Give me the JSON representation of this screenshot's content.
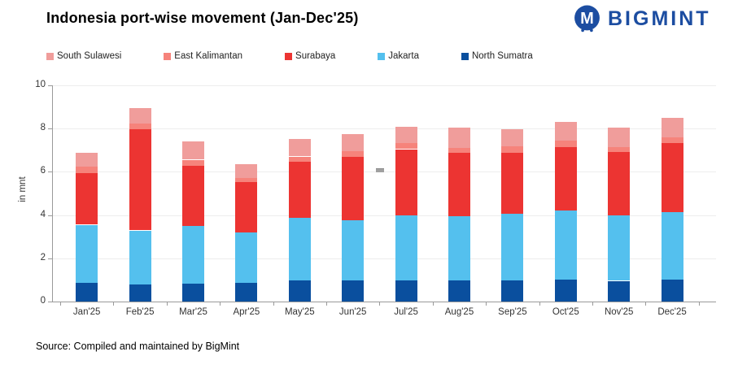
{
  "header": {
    "title": "Indonesia port-wise movement (Jan-Dec'25)",
    "logo_text": "BIGMINT",
    "logo_color": "#1C4DA1"
  },
  "legend": {
    "items": [
      {
        "label": "South Sulawesi",
        "color": "#F09D9B"
      },
      {
        "label": "East Kalimantan",
        "color": "#F6837B"
      },
      {
        "label": "Surabaya",
        "color": "#EC3432"
      },
      {
        "label": "Jakarta",
        "color": "#54C0EE"
      },
      {
        "label": "North Sumatra",
        "color": "#0A4F9E"
      }
    ]
  },
  "chart_data": {
    "type": "bar",
    "stacked": true,
    "title": "Indonesia port-wise movement (Jan-Dec'25)",
    "categories": [
      "Jan'25",
      "Feb'25",
      "Mar'25",
      "Apr'25",
      "May'25",
      "Jun'25",
      "Jul'25",
      "Aug'25",
      "Sep'25",
      "Oct'25",
      "Nov'25",
      "Dec'25"
    ],
    "series": [
      {
        "name": "North Sumatra",
        "color": "#0A4F9E",
        "values": [
          0.85,
          0.81,
          0.84,
          0.88,
          0.99,
          0.99,
          0.97,
          0.98,
          0.99,
          1.03,
          0.96,
          1.0
        ]
      },
      {
        "name": "Jakarta",
        "color": "#54C0EE",
        "values": [
          2.7,
          2.48,
          2.64,
          2.3,
          2.89,
          2.77,
          3.01,
          2.96,
          3.09,
          3.17,
          3.01,
          3.13
        ]
      },
      {
        "name": "Surabaya",
        "color": "#EC3432",
        "values": [
          2.4,
          4.69,
          2.79,
          2.33,
          2.57,
          2.94,
          3.07,
          2.95,
          2.82,
          2.95,
          2.96,
          3.2
        ]
      },
      {
        "name": "East Kalimantan",
        "color": "#F6837B",
        "values": [
          0.28,
          0.25,
          0.29,
          0.22,
          0.26,
          0.26,
          0.28,
          0.22,
          0.3,
          0.28,
          0.22,
          0.25
        ]
      },
      {
        "name": "South Sulawesi",
        "color": "#F09D9B",
        "values": [
          0.67,
          0.73,
          0.86,
          0.63,
          0.82,
          0.78,
          0.76,
          0.92,
          0.79,
          0.88,
          0.9,
          0.91
        ]
      }
    ],
    "totals": [
      6.9,
      8.96,
      7.42,
      6.36,
      7.53,
      7.74,
      8.09,
      8.03,
      7.99,
      8.31,
      8.05,
      8.49
    ],
    "xlabel": "",
    "ylabel": "in mnt",
    "ylim": [
      0,
      10
    ],
    "yticks": [
      0,
      2,
      4,
      6,
      8,
      10
    ],
    "grid": "horizontal",
    "legend_position": "top-left",
    "annotation_marker": {
      "shape": "dash",
      "value": 6,
      "position": "between Jun'25 and Jul'25",
      "color": "#A0A0A0"
    }
  },
  "footer": {
    "source": "Source: Compiled and maintained by BigMint"
  }
}
